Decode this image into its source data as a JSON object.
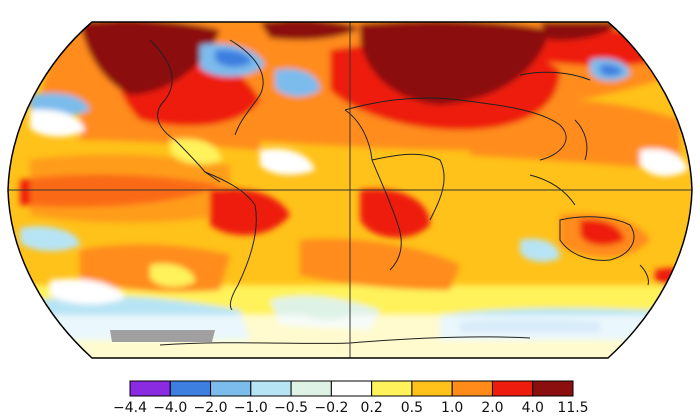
{
  "map": {
    "projection": "robinson",
    "variable": "temperature-anomaly",
    "graticule": [
      "equator",
      "prime-meridian"
    ],
    "missing_data_color": "#a0a0a0",
    "coastline_color": "#222222"
  },
  "legend": {
    "labels": [
      "−4.4",
      "−4.0",
      "−2.0",
      "−1.0",
      "−0.5",
      "−0.2",
      "0.2",
      "0.5",
      "1.0",
      "2.0",
      "4.0",
      "11.5"
    ],
    "bins": [
      {
        "color": "#8a2be2"
      },
      {
        "color": "#3d7fe0"
      },
      {
        "color": "#7cbcec"
      },
      {
        "color": "#b7e4f4"
      },
      {
        "color": "#dff2e6"
      },
      {
        "color": "#ffffff"
      },
      {
        "color": "#fff25a"
      },
      {
        "color": "#ffc21a"
      },
      {
        "color": "#ff8c1a"
      },
      {
        "color": "#ee1c0c"
      },
      {
        "color": "#8b0f0f"
      }
    ]
  }
}
